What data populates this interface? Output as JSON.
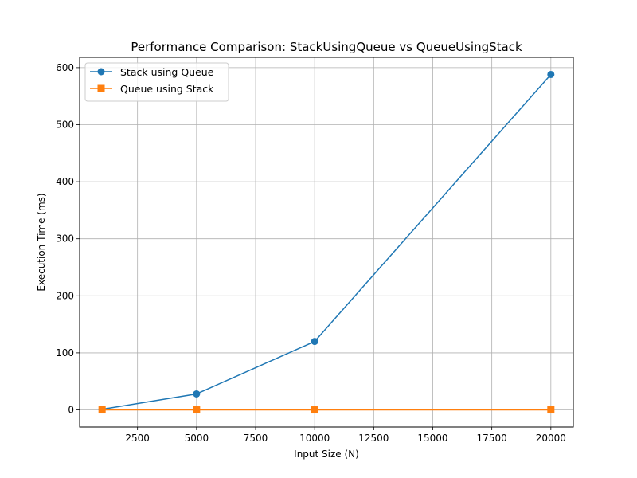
{
  "chart_data": {
    "type": "line",
    "title": "Performance Comparison: StackUsingQueue vs QueueUsingStack",
    "xlabel": "Input Size (N)",
    "ylabel": "Execution Time (ms)",
    "x": [
      1000,
      5000,
      10000,
      20000
    ],
    "xlim": [
      50,
      20950
    ],
    "ylim": [
      -30,
      618
    ],
    "xticks": [
      2500,
      5000,
      7500,
      10000,
      12500,
      15000,
      17500,
      20000
    ],
    "yticks": [
      0,
      100,
      200,
      300,
      400,
      500,
      600
    ],
    "grid": true,
    "legend_position": "top-left",
    "series": [
      {
        "name": "Stack using Queue",
        "values": [
          1,
          28,
          120,
          588
        ],
        "marker": "circle",
        "color": "#1f77b4"
      },
      {
        "name": "Queue using Stack",
        "values": [
          0,
          0,
          0,
          0
        ],
        "marker": "square",
        "color": "#ff7f0e"
      }
    ]
  }
}
